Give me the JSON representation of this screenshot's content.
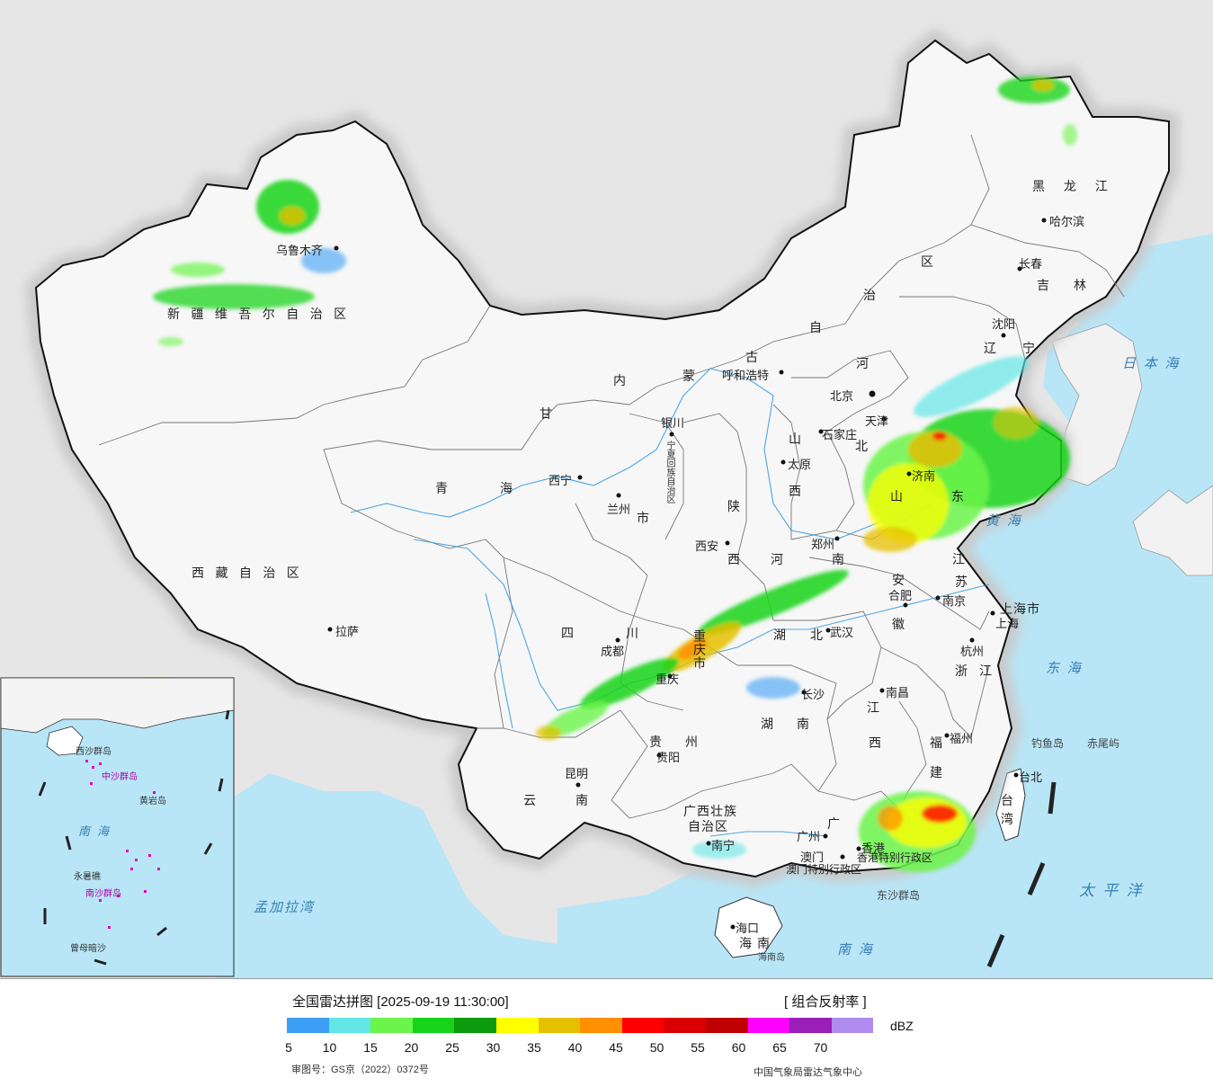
{
  "legend": {
    "title": "全国雷达拼图 [2025-09-19 11:30:00]",
    "product": "[ 组合反射率 ]",
    "unit": "dBZ",
    "approval": "审图号：GS京（2022）0372号",
    "source": "中国气象局雷达气象中心",
    "ticks": [
      "5",
      "10",
      "15",
      "20",
      "25",
      "30",
      "35",
      "40",
      "45",
      "50",
      "55",
      "60",
      "65",
      "70"
    ],
    "colors": [
      "#3d9ff5",
      "#62e6e6",
      "#6bf54a",
      "#17d41a",
      "#0c9a0e",
      "#ffff00",
      "#e5c000",
      "#ff9000",
      "#ff0000",
      "#d90000",
      "#bf0000",
      "#ff00ff",
      "#9a1fb8",
      "#b08cf0"
    ]
  },
  "regions": {
    "xinjiang": "新 疆 维 吾 尔 自 治 区",
    "xizang": "西 藏 自 治 区",
    "qinghai": [
      "青",
      "海"
    ],
    "gansu": "甘",
    "sichuan": [
      "四",
      "川"
    ],
    "yunnan": [
      "云",
      "南"
    ],
    "neimenggu": [
      "内",
      "蒙",
      "古",
      "自",
      "治",
      "区"
    ],
    "heilongjiang": [
      "黑",
      "龙",
      "江"
    ],
    "jilin": [
      "吉",
      "林"
    ],
    "liaoning": [
      "辽",
      "宁"
    ],
    "hebei": [
      "河",
      "北"
    ],
    "shanxi": [
      "山",
      "西"
    ],
    "shaanxi": [
      "陕",
      "西"
    ],
    "henan": [
      "河",
      "南"
    ],
    "shandong": [
      "山",
      "东"
    ],
    "jiangsu": [
      "江",
      "苏"
    ],
    "anhui": [
      "安",
      "徽"
    ],
    "hubei": [
      "湖",
      "北"
    ],
    "hunan": [
      "湖",
      "南"
    ],
    "jiangxi": [
      "江",
      "西"
    ],
    "zhejiang": [
      "浙",
      "江"
    ],
    "fujian": [
      "福",
      "建"
    ],
    "guizhou": [
      "贵",
      "州"
    ],
    "guangdong": "广",
    "guangxi": [
      "广西壮族",
      "自治区"
    ],
    "hainan": [
      "海",
      "南"
    ],
    "taiwan": [
      "台",
      "湾"
    ],
    "ningxia": "宁夏回族自治区",
    "gansu2": "市",
    "chongqing": [
      "重",
      "庆",
      "市"
    ],
    "shanghai": "上海市",
    "hk_macau": "香港特别行政区",
    "macau_sar": "澳门特别行政区",
    "tianjin_lbl": "天津"
  },
  "cities": {
    "urumqi": "乌鲁木齐",
    "lhasa": "拉萨",
    "xining": "西宁",
    "lanzhou": "兰州",
    "yinchuan": "银川",
    "hohhot": "呼和浩特",
    "beijing": "北京",
    "tianjin": "天津",
    "shijiazhuang": "石家庄",
    "taiyuan": "太原",
    "xian": "西安",
    "zhengzhou": "郑州",
    "jinan": "济南",
    "hefei": "合肥",
    "nanjing": "南京",
    "shanghai": "上海",
    "hangzhou": "杭州",
    "wuhan": "武汉",
    "changsha": "长沙",
    "nanchang": "南昌",
    "fuzhou": "福州",
    "chengdu": "成都",
    "chongqing": "重庆",
    "guiyang": "贵阳",
    "kunming": "昆明",
    "nanning": "南宁",
    "guangzhou": "广州",
    "macau": "澳门",
    "hongkong": "香港",
    "haikou": "海口",
    "taipei": "台北",
    "shenyang": "沈阳",
    "changchun": "长春",
    "harbin": "哈尔滨"
  },
  "seas": {
    "japan_sea": "日 本 海",
    "yellow_sea": "黄 海",
    "east_sea": "东 海",
    "pacific": "太 平 洋",
    "south_sea": "南 海",
    "bengal": "孟加拉湾",
    "south_sea_inset": "南 海"
  },
  "islands": {
    "diaoyu": "钓鱼岛",
    "chiwei": "赤尾屿",
    "hainan_island": "海南岛",
    "dongsha": "东沙群岛",
    "xisha": "西沙群岛",
    "zhongsha": "中沙群岛",
    "huangyan": "黄岩岛",
    "yongshu": "永暑礁",
    "nansha": "南沙群岛",
    "zengmu": "曾母暗沙"
  }
}
